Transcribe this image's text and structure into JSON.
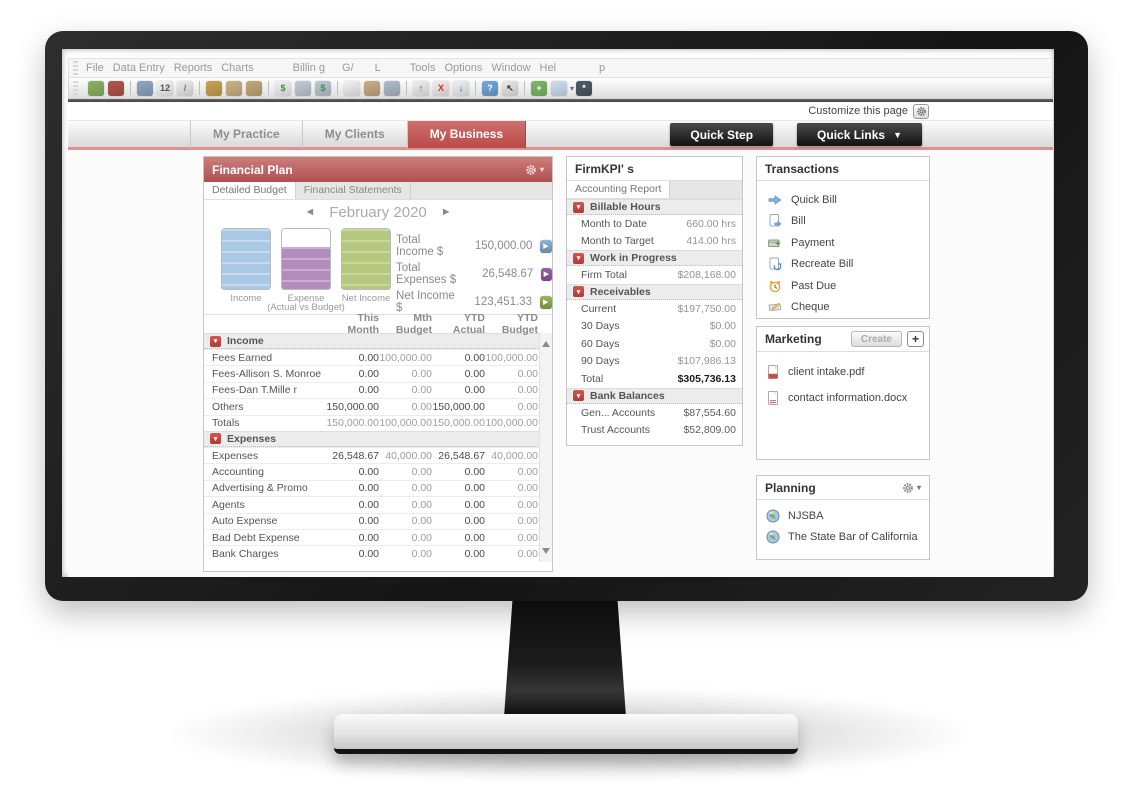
{
  "accent": {
    "red": "#b94a48",
    "tab_underline": "#df9191",
    "income_blue": "#a9c8e4",
    "expense_purple": "#b18cbc",
    "net_green": "#b5c87d"
  },
  "menu": {
    "items": [
      "File",
      "Data Entry",
      "Reports",
      "Charts",
      "Billin g",
      "G/",
      "L",
      "Tools",
      "Options",
      "Window",
      "Hel",
      "p"
    ]
  },
  "toolbar": {
    "icons": [
      {
        "name": "activity-icon",
        "color": "#8cb464",
        "glyph": ""
      },
      {
        "name": "helmet-icon",
        "color": "#b2564d",
        "glyph": ""
      },
      {
        "name": "clipboard-icon",
        "color": "#8fa7c4",
        "glyph": ""
      },
      {
        "name": "calendar-icon",
        "color": "#f5f5f5",
        "glyph": "12",
        "fg": "#555"
      },
      {
        "name": "signature-icon",
        "color": "#ececec",
        "glyph": "/",
        "fg": "#777"
      },
      {
        "name": "scales-icon",
        "color": "#c9a353",
        "glyph": ""
      },
      {
        "name": "folder-open-icon",
        "color": "#cdb387",
        "glyph": ""
      },
      {
        "name": "folder-closed-icon",
        "color": "#c3a978",
        "glyph": ""
      },
      {
        "name": "dollar-icon",
        "color": "#f3f3f3",
        "glyph": "$",
        "fg": "#3e8e41"
      },
      {
        "name": "ledger-icon",
        "color": "#c2ccd6",
        "glyph": ""
      },
      {
        "name": "ledger-dollar-icon",
        "color": "#bdc9d3",
        "glyph": "$",
        "fg": "#3e8e41"
      },
      {
        "name": "note-edit-icon",
        "color": "#f2f2f2",
        "glyph": "",
        "fg": "#c77"
      },
      {
        "name": "briefcase-icon",
        "color": "#c9ad84",
        "glyph": ""
      },
      {
        "name": "save-icon",
        "color": "#aebdcb",
        "glyph": ""
      },
      {
        "name": "export-icon",
        "color": "#f0f0f0",
        "glyph": "↑",
        "fg": "#556"
      },
      {
        "name": "scissors-icon",
        "color": "#f6eded",
        "glyph": "X",
        "fg": "#c0392b"
      },
      {
        "name": "download-icon",
        "color": "#eef2f6",
        "glyph": "↓",
        "fg": "#556"
      },
      {
        "name": "help-icon",
        "color": "#6fa7d8",
        "glyph": "?"
      },
      {
        "name": "cursor-help-icon",
        "color": "#e9e9e9",
        "glyph": "↖",
        "fg": "#333"
      },
      {
        "name": "navigate-icon",
        "color": "#7fb96a",
        "glyph": "+"
      },
      {
        "name": "window-icon",
        "color": "#cfe0f2",
        "glyph": "",
        "caret": true
      },
      {
        "name": "switch-icon",
        "color": "#4d5a66",
        "glyph": "*"
      }
    ]
  },
  "header": {
    "customize_label": "Customize this page",
    "tabs": [
      {
        "label": "My Practice",
        "active": false
      },
      {
        "label": "My Clients",
        "active": false
      },
      {
        "label": "My Business",
        "active": true
      }
    ],
    "quick_step": "Quick Step",
    "quick_links": "Quick Links"
  },
  "financial_plan": {
    "title": "Financial Plan",
    "tabs": [
      {
        "label": "Detailed Budget",
        "active": true
      },
      {
        "label": "Financial Statements",
        "active": false
      }
    ],
    "month_label": "February 2020",
    "prev_arrow": "◄",
    "next_arrow": "►",
    "cylinders": [
      {
        "label": "Income",
        "color": "#a9c8e4",
        "stripe": "#c6daec",
        "fill_pct": 100
      },
      {
        "label": "Expense",
        "color": "#b18cbc",
        "stripe": "#c9aed2",
        "fill_pct": 70
      },
      {
        "label": "Net Income",
        "color": "#b5c87d",
        "stripe": "#cbd79c",
        "fill_pct": 100
      }
    ],
    "cylinders_sublabel": "(Actual vs Budget)",
    "summary": [
      {
        "label": "Total Income $",
        "value": "150,000.00",
        "color": "#8db3dd"
      },
      {
        "label": "Total Expenses $",
        "value": "26,548.67",
        "color": "#9b62a5"
      },
      {
        "label": "Net Income $",
        "value": "123,451.33",
        "color": "#97b954"
      }
    ],
    "table": {
      "columns": [
        "This Month",
        "Mth Budget",
        "YTD Actual",
        "YTD Budget"
      ],
      "sections": [
        {
          "name": "Income",
          "rows": [
            {
              "label": "Fees Earned",
              "values": [
                "0.00",
                "100,000.00",
                "0.00",
                "100,000.00"
              ]
            },
            {
              "label": "Fees-Allison S. Monroe",
              "values": [
                "0.00",
                "0.00",
                "0.00",
                "0.00"
              ]
            },
            {
              "label": "Fees-Dan T.Mille r",
              "values": [
                "0.00",
                "0.00",
                "0.00",
                "0.00"
              ]
            },
            {
              "label": "Others",
              "values": [
                "150,000.00",
                "0.00",
                "150,000.00",
                "0.00"
              ]
            },
            {
              "label": "Totals",
              "values": [
                "150,000.00",
                "100,000.00",
                "150,000.00",
                "100,000.00"
              ],
              "muted": true
            }
          ]
        },
        {
          "name": "Expenses",
          "rows": [
            {
              "label": "Expenses",
              "values": [
                "26,548.67",
                "40,000.00",
                "26,548.67",
                "40,000.00"
              ]
            },
            {
              "label": "Accounting",
              "values": [
                "0.00",
                "0.00",
                "0.00",
                "0.00"
              ]
            },
            {
              "label": "Advertising & Promo",
              "values": [
                "0.00",
                "0.00",
                "0.00",
                "0.00"
              ]
            },
            {
              "label": "Agents",
              "values": [
                "0.00",
                "0.00",
                "0.00",
                "0.00"
              ]
            },
            {
              "label": "Auto Expense",
              "values": [
                "0.00",
                "0.00",
                "0.00",
                "0.00"
              ]
            },
            {
              "label": "Bad Debt Expense",
              "values": [
                "0.00",
                "0.00",
                "0.00",
                "0.00"
              ]
            },
            {
              "label": "Bank Charges",
              "values": [
                "0.00",
                "0.00",
                "0.00",
                "0.00"
              ]
            }
          ]
        }
      ]
    }
  },
  "firm_kpi": {
    "title": "FirmKPI' s",
    "tab": "Accounting Report",
    "sections": [
      {
        "name": "Billable Hours",
        "rows": [
          {
            "label": "Month to Date",
            "value": "660.00 hrs"
          },
          {
            "label": "Month to Target",
            "value": "414.00 hrs"
          }
        ]
      },
      {
        "name": "Work in Progress",
        "rows": [
          {
            "label": "Firm Total",
            "value": "$208,168.00"
          }
        ]
      },
      {
        "name": "Receivables",
        "rows": [
          {
            "label": "Current",
            "value": "$197,750.00"
          },
          {
            "label": "30 Days",
            "value": "$0.00"
          },
          {
            "label": "60 Days",
            "value": "$0.00"
          },
          {
            "label": "90 Days",
            "value": "$107,986.13"
          },
          {
            "label": "Total",
            "value": "$305,736.13",
            "strong": true
          }
        ]
      },
      {
        "name": "Bank Balances",
        "rows": [
          {
            "label": "Gen... Accounts",
            "value": "$87,554.60",
            "bank": true
          },
          {
            "label": "Trust Accounts",
            "value": "$52,809.00",
            "bank": true
          }
        ]
      }
    ]
  },
  "transactions": {
    "title": "Transactions",
    "items": [
      {
        "icon": "quick-bill-icon",
        "label": "Quick Bill"
      },
      {
        "icon": "bill-icon",
        "label": "Bill"
      },
      {
        "icon": "payment-icon",
        "label": "Payment"
      },
      {
        "icon": "recreate-bill-icon",
        "label": "Recreate Bill"
      },
      {
        "icon": "past-due-icon",
        "label": "Past Due"
      },
      {
        "icon": "cheque-icon",
        "label": "Cheque"
      }
    ]
  },
  "marketing": {
    "title": "Marketing",
    "create_label": "Create",
    "add_label": "+",
    "files": [
      {
        "icon": "pdf-file-icon",
        "label": "client intake.pdf"
      },
      {
        "icon": "doc-file-icon",
        "label": "contact information.docx"
      }
    ]
  },
  "planning": {
    "title": "Planning",
    "items": [
      {
        "icon": "globe-icon",
        "label": "NJSBA"
      },
      {
        "icon": "globe-icon",
        "label": "The State Bar of California"
      }
    ]
  }
}
